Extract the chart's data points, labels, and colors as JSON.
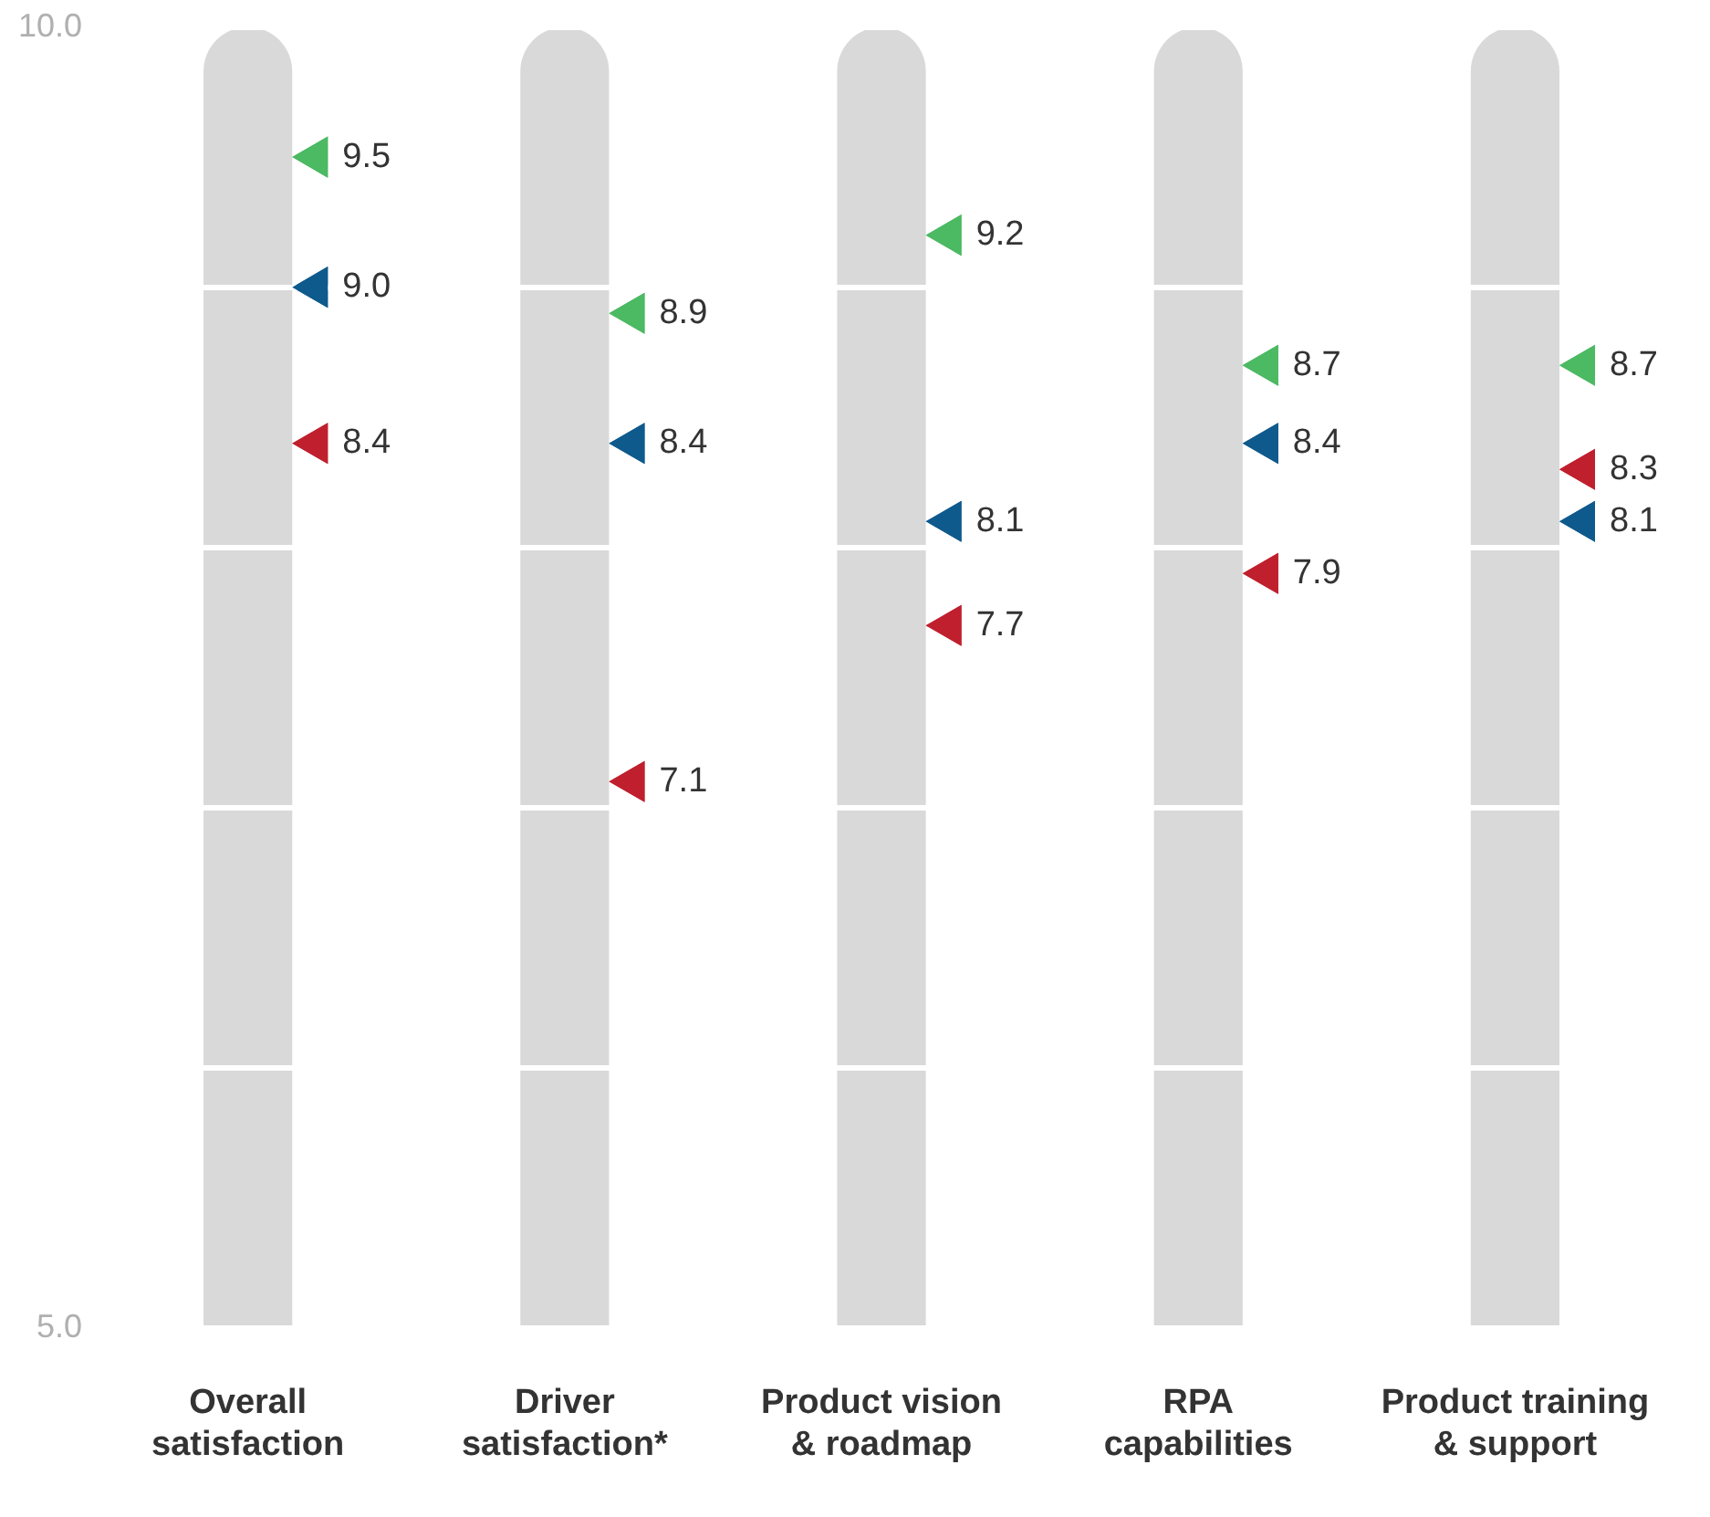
{
  "chart_data": {
    "type": "bar",
    "categories": [
      "Overall satisfaction",
      "Driver satisfaction*",
      "Product vision & roadmap",
      "RPA capabilities",
      "Product training & support"
    ],
    "ylim": [
      5,
      10
    ],
    "yticks": [
      {
        "value": 5,
        "label": "5.0"
      },
      {
        "value": 6,
        "label": null
      },
      {
        "value": 7,
        "label": null
      },
      {
        "value": 8,
        "label": null
      },
      {
        "value": 9,
        "label": null
      },
      {
        "value": 10,
        "label": "10.0"
      }
    ],
    "grid": "y",
    "marker": "triangle",
    "series": [
      {
        "color": "#d9d9d9",
        "values": [
          10,
          10,
          10,
          10,
          10
        ]
      },
      {
        "type": "scatter",
        "color": "#4cb963",
        "x": [
          "Overall satisfaction",
          "Driver satisfaction*",
          "Product vision & roadmap",
          "RPA capabilities",
          "Product training & support"
        ],
        "values": [
          9.5,
          8.9,
          9.2,
          8.7,
          8.7
        ],
        "value_labels": [
          "9.5",
          "8.9",
          "9.2",
          "8.7",
          "8.7"
        ]
      },
      {
        "type": "scatter",
        "color": "#0f5a8c",
        "x": [
          "Overall satisfaction",
          "Driver satisfaction*",
          "Product vision & roadmap",
          "RPA capabilities",
          "Product training & support"
        ],
        "values": [
          9.0,
          8.4,
          8.1,
          8.4,
          8.1
        ],
        "value_labels": [
          "9.0",
          "8.4",
          "8.1",
          "8.4",
          "8.1"
        ]
      },
      {
        "type": "scatter",
        "color": "#c0202e",
        "x": [
          "Overall satisfaction",
          "Driver satisfaction*",
          "Product vision & roadmap",
          "RPA capabilities",
          "Product training & support"
        ],
        "values": [
          8.4,
          7.1,
          7.7,
          7.9,
          8.3
        ],
        "value_labels": [
          "8.4",
          "7.1",
          "7.7",
          "7.9",
          "8.3"
        ]
      }
    ]
  }
}
